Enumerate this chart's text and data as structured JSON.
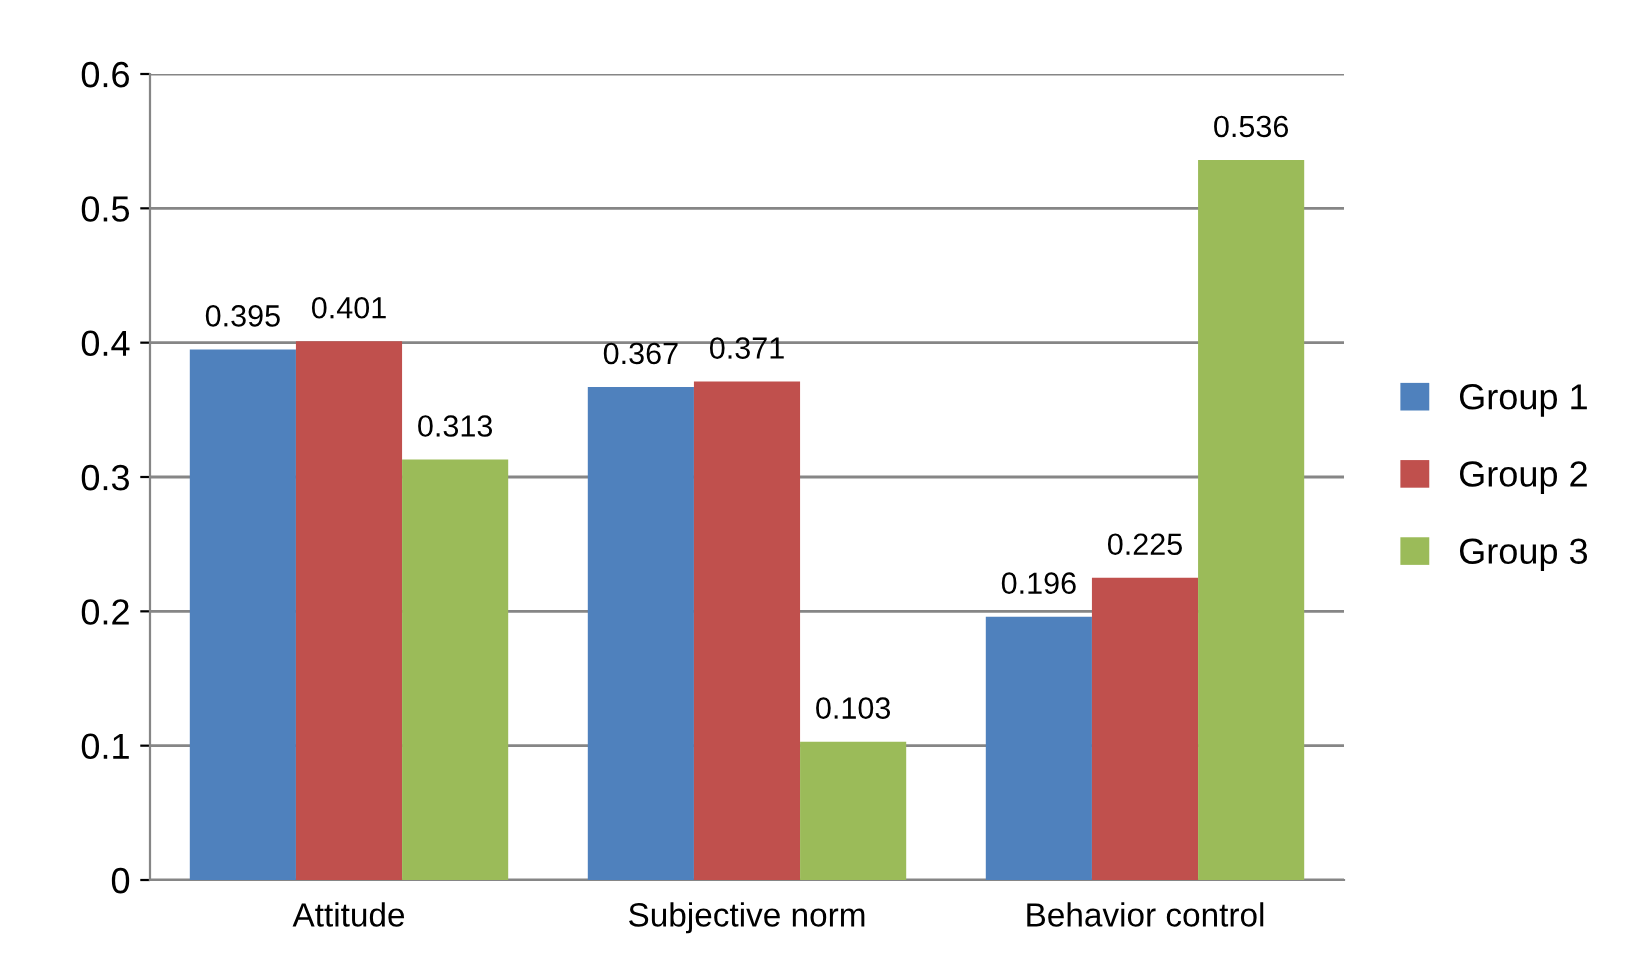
{
  "chart_data": {
    "type": "bar",
    "categories": [
      "Attitude",
      "Subjective norm",
      "Behavior control"
    ],
    "series": [
      {
        "name": "Group 1",
        "color": "#4f81bd",
        "values": [
          0.395,
          0.367,
          0.196
        ]
      },
      {
        "name": "Group 2",
        "color": "#c0504d",
        "values": [
          0.401,
          0.371,
          0.225
        ]
      },
      {
        "name": "Group 3",
        "color": "#9bbb59",
        "values": [
          0.313,
          0.103,
          0.536
        ]
      }
    ],
    "ylim": [
      0,
      0.6
    ],
    "yticks": [
      0,
      0.1,
      0.2,
      0.3,
      0.4,
      0.5,
      0.6
    ],
    "grid": "y",
    "legend": "right",
    "data_labels": true
  }
}
